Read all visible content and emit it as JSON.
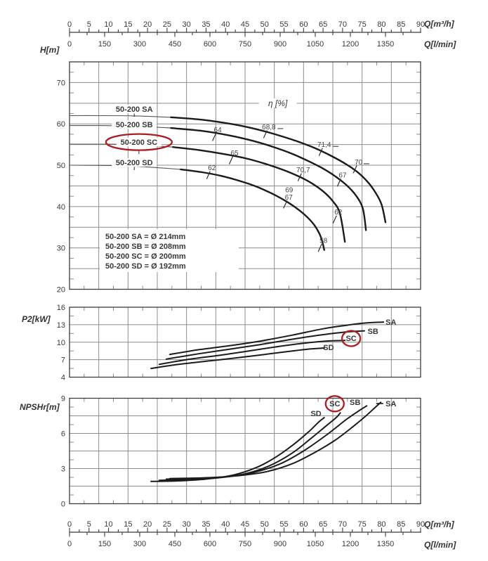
{
  "colors": {
    "curve": "#1b1b1b",
    "thin_curve": "#555555",
    "grid": "#8c8c8c",
    "frame": "#3c3c3c",
    "text": "#383838",
    "eff_text": "#444444",
    "red": "#a81e22",
    "background": "#ffffff"
  },
  "axes": {
    "q_m3h": {
      "unit": "Q[m³/h]",
      "ticks": [
        0,
        5,
        10,
        15,
        20,
        25,
        30,
        35,
        40,
        45,
        50,
        55,
        60,
        65,
        70,
        75,
        80,
        85,
        90
      ]
    },
    "q_lmin": {
      "unit": "Q[l/min]",
      "ticks": [
        0,
        150,
        300,
        450,
        600,
        750,
        900,
        1050,
        1200,
        1350
      ]
    },
    "head": {
      "label": "H[m]",
      "ticks": [
        70,
        60,
        50,
        40,
        30,
        20
      ]
    },
    "power": {
      "label": "P2[kW]",
      "ticks": [
        16,
        13,
        10,
        7,
        4
      ]
    },
    "npsh": {
      "label": "NPSHr[m]",
      "ticks": [
        9,
        6,
        3,
        0
      ]
    }
  },
  "chart_data": [
    {
      "id": "head",
      "type": "line",
      "xlabel": "Q[m³/h]",
      "ylabel": "H[m]",
      "xlim": [
        0,
        90
      ],
      "ylim": [
        20,
        75
      ],
      "eta_title": "η [%]",
      "eta_title_pos": {
        "q": 53.4,
        "h": 65.0
      },
      "curves": [
        {
          "name": "50-200 SA",
          "short": "SA",
          "thick_from": 26,
          "label_pos": [
            16.6,
            63.6
          ],
          "label_tick": true,
          "points": [
            [
              0,
              62
            ],
            [
              8,
              62
            ],
            [
              16,
              61.95
            ],
            [
              26,
              61.6
            ],
            [
              34,
              61.0
            ],
            [
              42,
              59.9
            ],
            [
              48,
              58.7
            ],
            [
              53,
              57.4
            ],
            [
              58,
              55.9
            ],
            [
              63,
              54.1
            ],
            [
              67,
              52.3
            ],
            [
              71,
              50.2
            ],
            [
              74,
              48.2
            ],
            [
              76.5,
              45.9
            ],
            [
              78.5,
              43.3
            ],
            [
              80,
              40.5
            ],
            [
              81,
              36.2
            ]
          ]
        },
        {
          "name": "50-200 SB",
          "short": "SB",
          "thick_from": 26,
          "label_pos": [
            16.6,
            59.9
          ],
          "label_tick": false,
          "points": [
            [
              0,
              59.6
            ],
            [
              8,
              59.6
            ],
            [
              16,
              59.5
            ],
            [
              26,
              59.0
            ],
            [
              34,
              58.3
            ],
            [
              41,
              57.2
            ],
            [
              47,
              55.9
            ],
            [
              52,
              54.5
            ],
            [
              57,
              52.8
            ],
            [
              61,
              51.1
            ],
            [
              65,
              49.2
            ],
            [
              68,
              47.4
            ],
            [
              71,
              45.2
            ],
            [
              73.5,
              42.6
            ],
            [
              75.2,
              39.5
            ],
            [
              76,
              34.3
            ]
          ]
        },
        {
          "name": "50-200 SC",
          "short": "SC",
          "circled": true,
          "thick_from": 26.5,
          "label_pos": [
            17.8,
            55.6
          ],
          "label_tick": true,
          "points": [
            [
              0,
              55.1
            ],
            [
              8,
              55.1
            ],
            [
              16,
              55.0
            ],
            [
              26.5,
              54.4
            ],
            [
              33,
              53.7
            ],
            [
              39,
              52.8
            ],
            [
              45,
              51.7
            ],
            [
              50,
              50.4
            ],
            [
              55,
              48.8
            ],
            [
              59,
              47.2
            ],
            [
              62,
              45.7
            ],
            [
              65,
              43.7
            ],
            [
              67.5,
              41.3
            ],
            [
              69.3,
              38.4
            ],
            [
              70.6,
              31.5
            ]
          ]
        },
        {
          "name": "50-200 SD",
          "short": "SD",
          "thick_from": 28.5,
          "label_pos": [
            16.6,
            50.7
          ],
          "label_tick": true,
          "points": [
            [
              0,
              50
            ],
            [
              8,
              49.95
            ],
            [
              16,
              49.8
            ],
            [
              28.5,
              49.0
            ],
            [
              34,
              48.3
            ],
            [
              39,
              47.4
            ],
            [
              44,
              46.1
            ],
            [
              48,
              44.8
            ],
            [
              52,
              43.1
            ],
            [
              55.5,
              41.3
            ],
            [
              58.5,
              39.4
            ],
            [
              61,
              37.4
            ],
            [
              63,
              35.2
            ],
            [
              64.5,
              32.5
            ],
            [
              65.3,
              29.5
            ]
          ]
        }
      ],
      "eff_marks": [
        {
          "text": "64",
          "q": 37.1,
          "h": 56.8
        },
        {
          "text": "68,8",
          "q": 50.2,
          "h": 57.5,
          "dash": true
        },
        {
          "text": "71,4",
          "q": 64.4,
          "h": 53.2,
          "dash": true
        },
        {
          "text": "70",
          "q": 73.2,
          "h": 49.0,
          "dash": true
        },
        {
          "text": "65",
          "q": 41.4,
          "h": 51.2
        },
        {
          "text": "70,7",
          "q": 59.0,
          "h": 47.1
        },
        {
          "text": "67",
          "q": 69.1,
          "h": 45.8
        },
        {
          "text": "69",
          "q": 55.4,
          "h": 42.3,
          "no_tick": true
        },
        {
          "text": "67",
          "q": 55.3,
          "h": 40.5
        },
        {
          "text": "62",
          "q": 35.6,
          "h": 47.6
        },
        {
          "text": "62",
          "q": 68.0,
          "h": 36.9
        },
        {
          "text": "58",
          "q": 64.2,
          "h": 30.0
        }
      ],
      "legend": [
        "50-200 SA = Ø 214mm",
        "50-200 SB = Ø 208mm",
        "50-200 SC = Ø 200mm",
        "50-200 SD = Ø 192mm"
      ]
    },
    {
      "id": "power",
      "type": "line",
      "xlabel": "Q[m³/h]",
      "ylabel": "P2[kW]",
      "xlim": [
        0,
        90
      ],
      "ylim": [
        4,
        16
      ],
      "curves": [
        {
          "name": "SA",
          "label_pos": [
            82.4,
            13.47
          ],
          "points": [
            [
              25.7,
              7.9
            ],
            [
              33,
              8.7
            ],
            [
              41,
              9.4
            ],
            [
              49,
              10.2
            ],
            [
              57,
              11.2
            ],
            [
              65,
              12.3
            ],
            [
              71,
              12.9
            ],
            [
              76,
              13.3
            ],
            [
              80.5,
              13.45
            ]
          ]
        },
        {
          "name": "SB",
          "label_pos": [
            77.8,
            11.9
          ],
          "points": [
            [
              24.8,
              7.1
            ],
            [
              33,
              8.0
            ],
            [
              41,
              8.8
            ],
            [
              49,
              9.6
            ],
            [
              57,
              10.5
            ],
            [
              64,
              11.2
            ],
            [
              70,
              11.7
            ],
            [
              75.6,
              11.95
            ]
          ]
        },
        {
          "name": "SC",
          "circled": true,
          "label_pos": [
            72.2,
            10.69
          ],
          "points": [
            [
              23,
              6.2
            ],
            [
              31,
              7.1
            ],
            [
              39,
              7.8
            ],
            [
              47,
              8.6
            ],
            [
              55,
              9.4
            ],
            [
              61,
              9.9
            ],
            [
              66,
              10.2
            ],
            [
              70.6,
              10.3
            ]
          ]
        },
        {
          "name": "SD",
          "label_pos": [
            66.4,
            9.12
          ],
          "points": [
            [
              20.9,
              5.5
            ],
            [
              28,
              6.2
            ],
            [
              36,
              6.8
            ],
            [
              44,
              7.4
            ],
            [
              50,
              7.9
            ],
            [
              56,
              8.4
            ],
            [
              61,
              8.8
            ],
            [
              65.3,
              9.0
            ]
          ]
        }
      ]
    },
    {
      "id": "npsh",
      "type": "line",
      "xlabel": "Q[m³/h]",
      "ylabel": "NPSHr[m]",
      "xlim": [
        0,
        90
      ],
      "ylim": [
        0,
        9
      ],
      "curves": [
        {
          "name": "SD",
          "label_pos": [
            63.2,
            7.71
          ],
          "points": [
            [
              20.9,
              1.9
            ],
            [
              28,
              1.95
            ],
            [
              35,
              2.1
            ],
            [
              42,
              2.45
            ],
            [
              48,
              3.1
            ],
            [
              53,
              4.0
            ],
            [
              58,
              5.2
            ],
            [
              61.5,
              6.2
            ],
            [
              64,
              7.0
            ],
            [
              65.3,
              7.35
            ]
          ]
        },
        {
          "name": "SC",
          "circled": true,
          "label_pos": [
            68.0,
            8.56
          ],
          "points": [
            [
              23,
              2.0
            ],
            [
              30,
              2.05
            ],
            [
              38,
              2.2
            ],
            [
              45,
              2.55
            ],
            [
              51,
              3.2
            ],
            [
              57,
              4.3
            ],
            [
              62,
              5.6
            ],
            [
              66,
              6.7
            ],
            [
              68.5,
              7.4
            ],
            [
              69.4,
              7.75
            ]
          ]
        },
        {
          "name": "SB",
          "label_pos": [
            73.2,
            8.67
          ],
          "points": [
            [
              24.8,
              2.1
            ],
            [
              32,
              2.15
            ],
            [
              40,
              2.3
            ],
            [
              47,
              2.65
            ],
            [
              54,
              3.4
            ],
            [
              60,
              4.5
            ],
            [
              66,
              5.9
            ],
            [
              71,
              7.2
            ],
            [
              74.5,
              8.0
            ],
            [
              76.2,
              8.35
            ]
          ]
        },
        {
          "name": "SA",
          "dash": true,
          "label_pos": [
            82.4,
            8.55
          ],
          "points": [
            [
              25.7,
              2.15
            ],
            [
              34,
              2.2
            ],
            [
              42,
              2.35
            ],
            [
              50,
              2.7
            ],
            [
              57,
              3.4
            ],
            [
              63,
              4.4
            ],
            [
              68,
              5.4
            ],
            [
              72,
              6.4
            ],
            [
              76,
              7.5
            ],
            [
              78.6,
              8.3
            ],
            [
              79.8,
              8.65
            ]
          ]
        }
      ]
    }
  ]
}
